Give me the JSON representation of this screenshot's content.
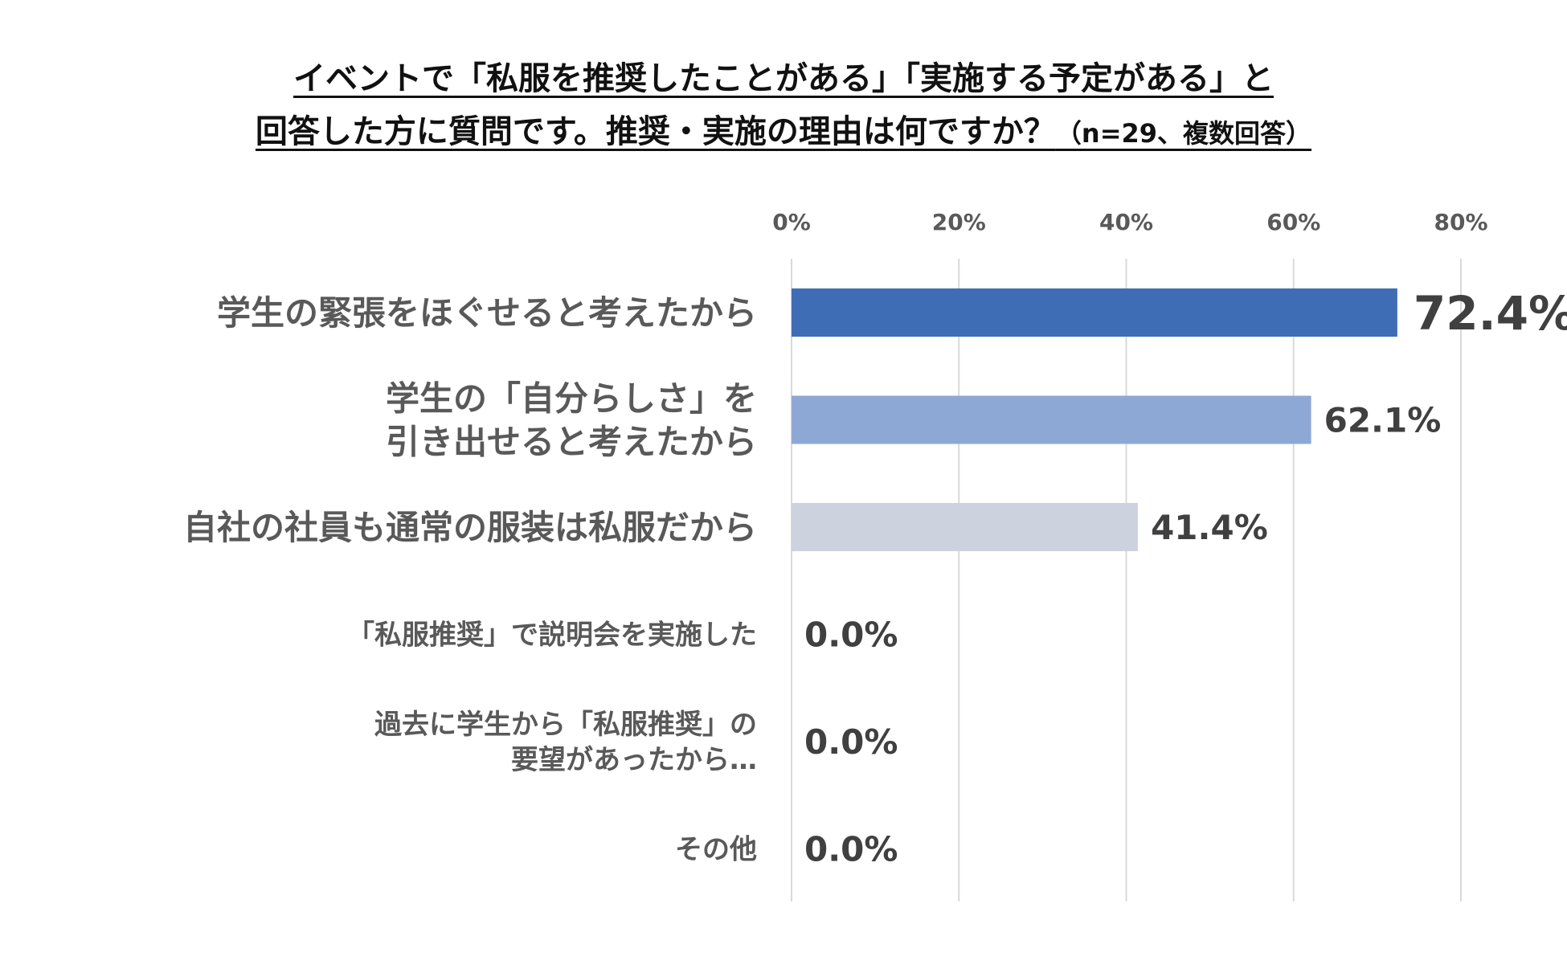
{
  "chart_data": {
    "type": "bar",
    "orientation": "horizontal",
    "title_line1": "イベントで「私服を推奨したことがある」「実施する予定がある」と",
    "title_line2": "回答した方に質問です。推奨・実施の理由は何ですか？",
    "title_note": "（n=29、複数回答）",
    "categories": [
      [
        "学生の緊張をほぐせると考えたから"
      ],
      [
        "学生の「自分らしさ」を",
        "引き出せると考えたから"
      ],
      [
        "自社の社員も通常の服装は私服だから"
      ],
      [
        "「私服推奨」で説明会を実施した"
      ],
      [
        "過去に学生から「私服推奨」の",
        "要望があったから…"
      ],
      [
        "その他"
      ]
    ],
    "values": [
      72.4,
      62.1,
      41.4,
      0.0,
      0.0,
      0.0
    ],
    "value_labels": [
      "72.4%",
      "62.1%",
      "41.4%",
      "0.0%",
      "0.0%",
      "0.0%"
    ],
    "xlim": [
      0,
      80
    ],
    "x_ticks": [
      0,
      20,
      40,
      60,
      80
    ],
    "x_tick_labels": [
      "0%",
      "20%",
      "40%",
      "60%",
      "80%"
    ],
    "x_axis_position": "top",
    "grid": true,
    "bar_colors": [
      "#3e6db5",
      "#8ea8d6",
      "#cdd3de",
      "#cdd3de",
      "#cdd3de",
      "#cdd3de"
    ],
    "gridline_color": "#d9d9d9"
  }
}
